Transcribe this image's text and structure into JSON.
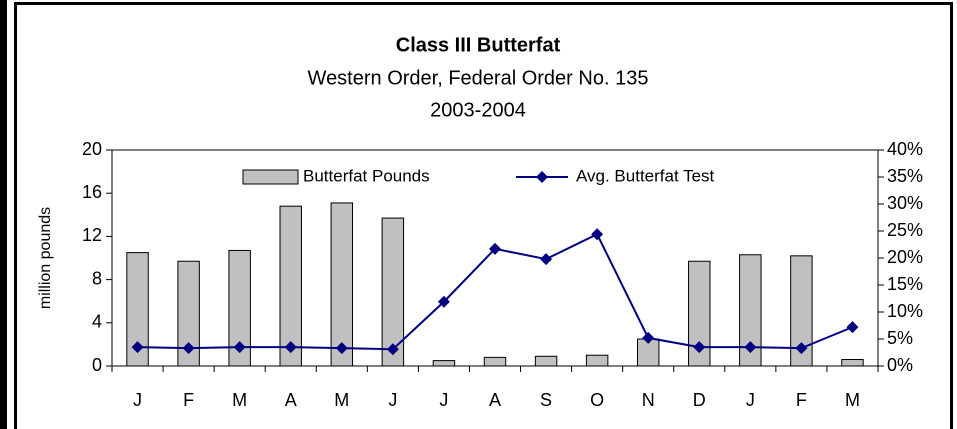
{
  "chart_data": {
    "type": "bar",
    "title": "Class III Butterfat",
    "subtitle": [
      "Western Order, Federal Order No. 135",
      "2003-2004"
    ],
    "ylabel": "million pounds",
    "categories": [
      "J",
      "F",
      "M",
      "A",
      "M",
      "J",
      "J",
      "A",
      "S",
      "O",
      "N",
      "D",
      "J",
      "F",
      "M"
    ],
    "series": [
      {
        "name": "Butterfat Pounds",
        "type": "bar",
        "color": "#c0c0c0",
        "values": [
          10.5,
          9.7,
          10.7,
          14.8,
          15.1,
          13.7,
          0.5,
          0.8,
          0.9,
          1.0,
          2.5,
          9.7,
          10.3,
          10.2,
          0.6
        ]
      },
      {
        "name": "Avg. Butterfat Test",
        "type": "line",
        "axis": "y2",
        "color": "#000080",
        "values": [
          3.5,
          3.3,
          3.5,
          3.5,
          3.3,
          3.1,
          11.9,
          21.7,
          19.8,
          24.4,
          5.2,
          3.5,
          3.5,
          3.3,
          7.2
        ]
      }
    ],
    "ylim": [
      0,
      20
    ],
    "yticks": [
      0,
      4,
      8,
      12,
      16,
      20
    ],
    "y2lim": [
      0,
      40
    ],
    "y2ticks": [
      {
        "value": 0,
        "label": "0%"
      },
      {
        "value": 5,
        "label": "5%"
      },
      {
        "value": 10,
        "label": "10%"
      },
      {
        "value": 15,
        "label": "15%"
      },
      {
        "value": 20,
        "label": "20%"
      },
      {
        "value": 25,
        "label": "25%"
      },
      {
        "value": 30,
        "label": "30%"
      },
      {
        "value": 35,
        "label": "35%"
      },
      {
        "value": 40,
        "label": "40%"
      }
    ],
    "legend": "upper center",
    "grid": false
  }
}
